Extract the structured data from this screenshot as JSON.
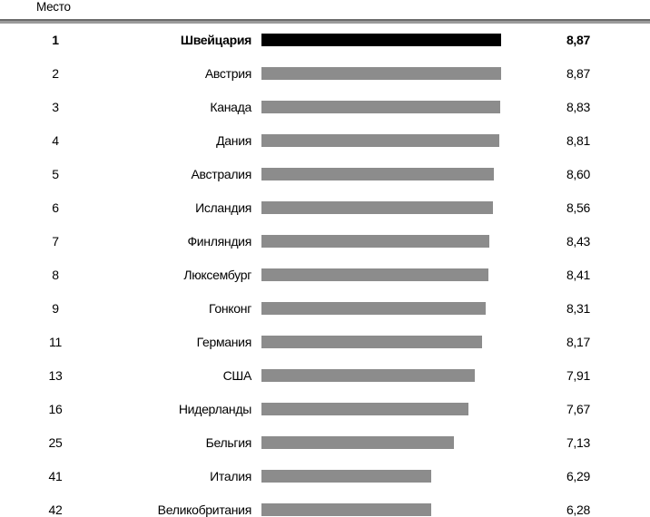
{
  "header": {
    "rank_label": "Место"
  },
  "colors": {
    "bar": "#8c8c8c",
    "bar_highlight": "#000000",
    "divider_dark": "#6b6b6b",
    "divider_light": "#9a9a9a",
    "text": "#000000"
  },
  "chart_data": {
    "type": "bar",
    "orientation": "horizontal",
    "title": "",
    "xlabel": "",
    "ylabel": "Место",
    "xlim": [
      0,
      8.87
    ],
    "grid": false,
    "legend": false,
    "value_decimal_separator": ",",
    "rows": [
      {
        "rank": "1",
        "country": "Швейцария",
        "value": 8.87,
        "value_label": "8,87",
        "highlight": true
      },
      {
        "rank": "2",
        "country": "Австрия",
        "value": 8.87,
        "value_label": "8,87",
        "highlight": false
      },
      {
        "rank": "3",
        "country": "Канада",
        "value": 8.83,
        "value_label": "8,83",
        "highlight": false
      },
      {
        "rank": "4",
        "country": "Дания",
        "value": 8.81,
        "value_label": "8,81",
        "highlight": false
      },
      {
        "rank": "5",
        "country": "Австралия",
        "value": 8.6,
        "value_label": "8,60",
        "highlight": false
      },
      {
        "rank": "6",
        "country": "Исландия",
        "value": 8.56,
        "value_label": "8,56",
        "highlight": false
      },
      {
        "rank": "7",
        "country": "Финляндия",
        "value": 8.43,
        "value_label": "8,43",
        "highlight": false
      },
      {
        "rank": "8",
        "country": "Люксембург",
        "value": 8.41,
        "value_label": "8,41",
        "highlight": false
      },
      {
        "rank": "9",
        "country": "Гонконг",
        "value": 8.31,
        "value_label": "8,31",
        "highlight": false
      },
      {
        "rank": "11",
        "country": "Германия",
        "value": 8.17,
        "value_label": "8,17",
        "highlight": false
      },
      {
        "rank": "13",
        "country": "США",
        "value": 7.91,
        "value_label": "7,91",
        "highlight": false
      },
      {
        "rank": "16",
        "country": "Нидерланды",
        "value": 7.67,
        "value_label": "7,67",
        "highlight": false
      },
      {
        "rank": "25",
        "country": "Бельгия",
        "value": 7.13,
        "value_label": "7,13",
        "highlight": false
      },
      {
        "rank": "41",
        "country": "Италия",
        "value": 6.29,
        "value_label": "6,29",
        "highlight": false
      },
      {
        "rank": "42",
        "country": "Великобритания",
        "value": 6.28,
        "value_label": "6,28",
        "highlight": false
      }
    ]
  }
}
